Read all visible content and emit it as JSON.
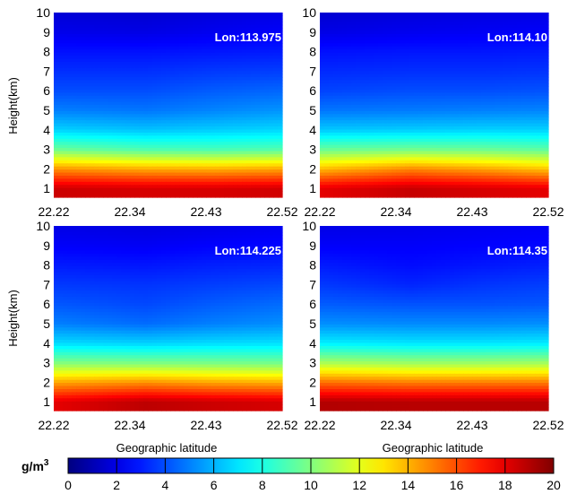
{
  "chart_data": {
    "type": "heatmap",
    "colorbar": {
      "label_base": "g/m",
      "label_sup": "3",
      "min": 0,
      "max": 20,
      "ticks": [
        "0",
        "2",
        "4",
        "6",
        "8",
        "10",
        "12",
        "14",
        "16",
        "18",
        "20"
      ],
      "colormap": "jet"
    },
    "shared_axes": {
      "xlabel": "Geographic latitude",
      "ylabel": "Height(km)",
      "x_ticks": [
        "22.22",
        "22.34",
        "22.43",
        "22.52"
      ],
      "x_tick_values": [
        22.22,
        22.34,
        22.43,
        22.52
      ],
      "xlim": [
        22.22,
        22.52
      ],
      "y_ticks": [
        "1",
        "2",
        "3",
        "4",
        "5",
        "6",
        "7",
        "8",
        "9",
        "10"
      ],
      "ylim": [
        0.55,
        10
      ]
    },
    "heights_km": [
      1,
      2,
      3,
      4,
      5,
      6,
      7,
      8,
      9,
      10
    ],
    "panels": [
      {
        "label": "Lon:113.975",
        "latitudes": [
          22.22,
          22.34,
          22.43,
          22.52
        ],
        "values": [
          [
            18.5,
            18.3,
            18.3,
            18.4
          ],
          [
            14.6,
            14.1,
            14.0,
            14.2
          ],
          [
            9.6,
            9.0,
            8.9,
            9.1
          ],
          [
            6.6,
            6.3,
            6.5,
            6.7
          ],
          [
            5.0,
            4.8,
            5.1,
            5.4
          ],
          [
            4.0,
            4.0,
            4.3,
            4.5
          ],
          [
            3.4,
            3.4,
            3.6,
            3.7
          ],
          [
            2.8,
            2.8,
            2.9,
            3.0
          ],
          [
            2.1,
            2.0,
            2.2,
            2.4
          ],
          [
            1.7,
            1.6,
            1.8,
            2.0
          ]
        ]
      },
      {
        "label": "Lon:114.10",
        "latitudes": [
          22.22,
          22.34,
          22.43,
          22.52
        ],
        "values": [
          [
            18.0,
            18.6,
            18.3,
            18.0
          ],
          [
            13.8,
            14.8,
            14.3,
            13.6
          ],
          [
            9.5,
            9.7,
            9.6,
            9.3
          ],
          [
            6.4,
            6.5,
            6.6,
            6.6
          ],
          [
            4.8,
            4.9,
            5.0,
            5.1
          ],
          [
            3.8,
            4.0,
            4.0,
            4.1
          ],
          [
            3.3,
            3.4,
            3.4,
            3.5
          ],
          [
            2.8,
            2.9,
            2.9,
            3.0
          ],
          [
            2.0,
            2.2,
            2.3,
            2.4
          ],
          [
            1.6,
            1.8,
            1.9,
            2.0
          ]
        ]
      },
      {
        "label": "Lon:114.225",
        "latitudes": [
          22.22,
          22.34,
          22.43,
          22.52
        ],
        "values": [
          [
            18.0,
            18.8,
            18.5,
            18.3
          ],
          [
            14.2,
            14.6,
            14.2,
            14.0
          ],
          [
            10.0,
            9.9,
            9.8,
            9.7
          ],
          [
            6.8,
            6.6,
            6.8,
            6.9
          ],
          [
            5.0,
            4.6,
            5.0,
            5.3
          ],
          [
            4.2,
            3.9,
            4.3,
            4.6
          ],
          [
            3.6,
            3.5,
            3.7,
            3.9
          ],
          [
            3.0,
            2.9,
            3.1,
            3.2
          ],
          [
            2.4,
            2.3,
            2.5,
            2.6
          ],
          [
            2.0,
            1.9,
            2.0,
            2.2
          ]
        ]
      },
      {
        "label": "Lon:114.35",
        "latitudes": [
          22.22,
          22.34,
          22.43,
          22.52
        ],
        "values": [
          [
            19.0,
            18.9,
            18.9,
            18.9
          ],
          [
            15.3,
            15.0,
            15.0,
            15.0
          ],
          [
            10.8,
            10.5,
            10.5,
            10.6
          ],
          [
            7.2,
            7.0,
            7.0,
            7.1
          ],
          [
            5.3,
            5.2,
            5.2,
            5.3
          ],
          [
            4.3,
            4.1,
            4.1,
            4.2
          ],
          [
            3.6,
            3.2,
            3.5,
            3.7
          ],
          [
            3.0,
            2.7,
            2.9,
            3.1
          ],
          [
            2.4,
            2.4,
            2.5,
            2.6
          ],
          [
            2.0,
            2.1,
            2.2,
            2.3
          ]
        ]
      }
    ]
  }
}
